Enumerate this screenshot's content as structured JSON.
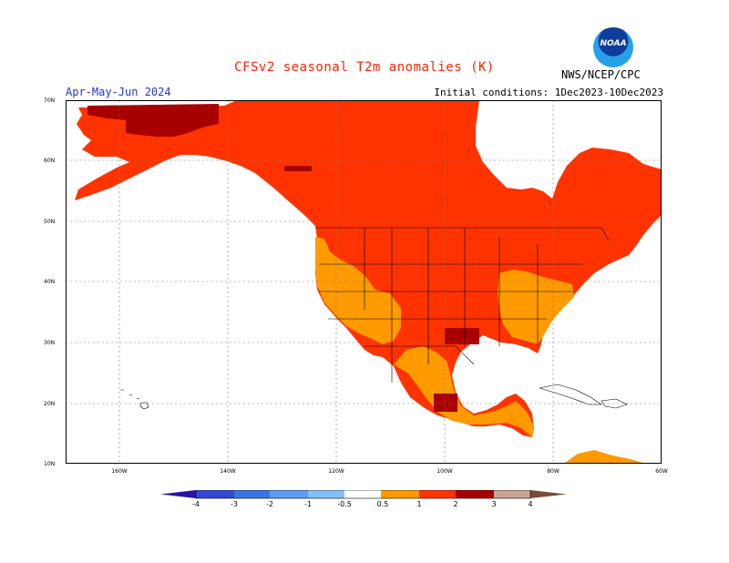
{
  "title": "CFSv2 seasonal T2m anomalies (K)",
  "period": "Apr-May-Jun 2024",
  "initial_conditions": "Initial conditions: 1Dec2023-10Dec2023",
  "agency": "NWS/NCEP/CPC",
  "logo_text": "NOAA",
  "map": {
    "projection": "lat-lon",
    "lat_labels": [
      "70N",
      "60N",
      "50N",
      "40N",
      "30N",
      "20N",
      "10N"
    ],
    "lon_labels": [
      "160W",
      "140W",
      "120W",
      "100W",
      "80W",
      "60W"
    ],
    "land_color": "#ff3300"
  },
  "colorbar": {
    "labels": [
      "-4",
      "-3",
      "-2",
      "-1",
      "-0.5",
      "0.5",
      "1",
      "2",
      "3",
      "4"
    ],
    "colors": [
      "#2b13a6",
      "#3348d4",
      "#3b73e2",
      "#5d9cf0",
      "#84bff7",
      "#ffffff",
      "#ff9a00",
      "#ff3300",
      "#a80000",
      "#c9a395",
      "#7a4a3c"
    ]
  }
}
